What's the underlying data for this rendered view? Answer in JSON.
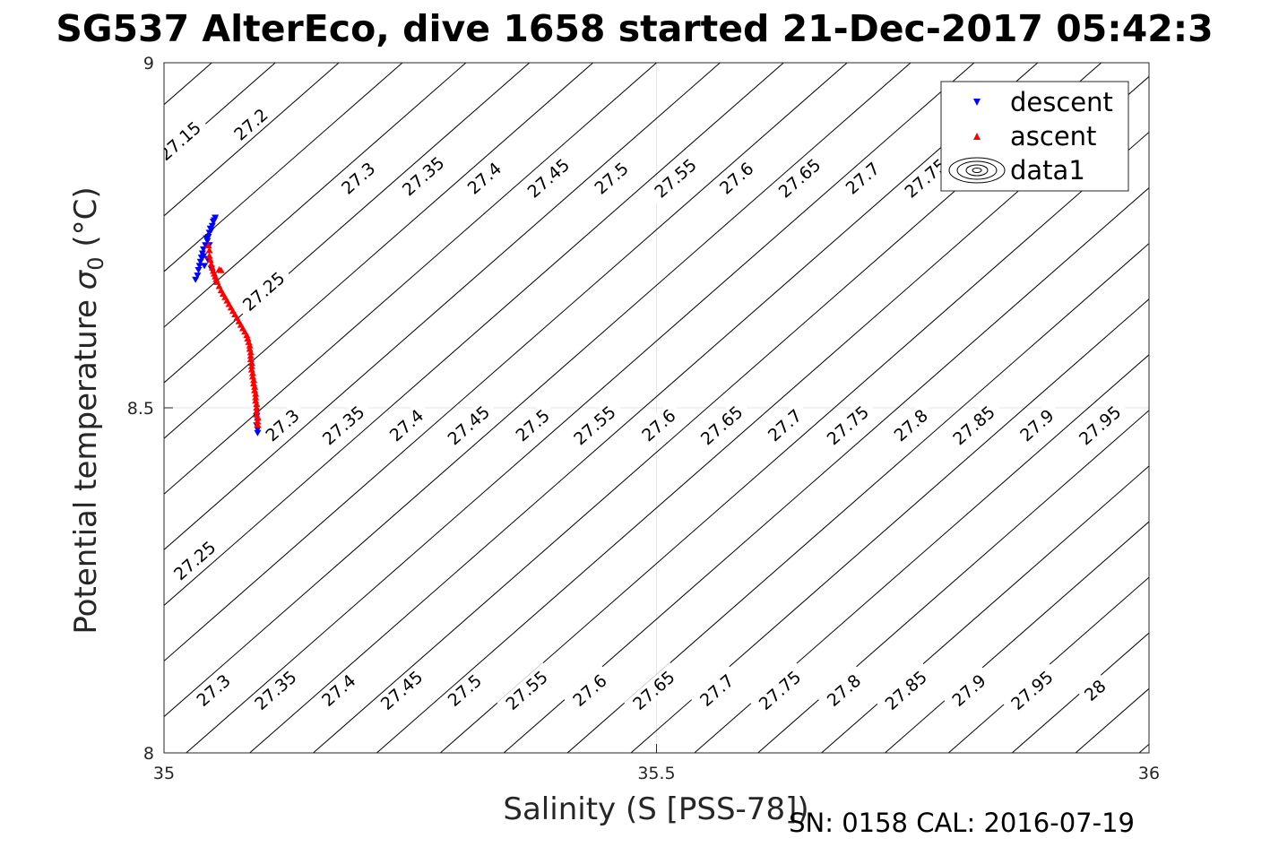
{
  "chart_data": {
    "type": "scatter",
    "title": "SG537 AlterEco, dive 1658 started 21-Dec-2017 05:42:3",
    "xlabel": "Salinity (S [PSS-78])",
    "ylabel_main": "Potential temperature",
    "ylabel_symbol": "σ",
    "ylabel_sub": "0",
    "ylabel_unit": "(°C)",
    "footer": "SN: 0158  CAL: 2016-07-19",
    "xlim": [
      35,
      36
    ],
    "ylim": [
      8,
      9
    ],
    "xticks": [
      35,
      35.5,
      36
    ],
    "xtick_labels": [
      "35",
      "35.5",
      "36"
    ],
    "yticks": [
      8,
      8.5,
      9
    ],
    "ytick_labels": [
      "8",
      "8.5",
      "9"
    ],
    "grid": true,
    "legend_position": "top-right",
    "legend": [
      {
        "label": "descent",
        "marker": "triangle-down",
        "color": "#0000ff"
      },
      {
        "label": "ascent",
        "marker": "triangle-up",
        "color": "#ff0000"
      },
      {
        "label": "data1",
        "marker": "contour",
        "color": "#000000"
      }
    ],
    "contour_labels": [
      {
        "text": "27.15",
        "s": 35.016,
        "t": 8.887
      },
      {
        "text": "27.2",
        "s": 35.088,
        "t": 8.911
      },
      {
        "text": "27.3",
        "s": 35.197,
        "t": 8.833
      },
      {
        "text": "27.35",
        "s": 35.263,
        "t": 8.836
      },
      {
        "text": "27.4",
        "s": 35.325,
        "t": 8.833
      },
      {
        "text": "27.45",
        "s": 35.39,
        "t": 8.833
      },
      {
        "text": "27.5",
        "s": 35.454,
        "t": 8.833
      },
      {
        "text": "27.55",
        "s": 35.519,
        "t": 8.833
      },
      {
        "text": "27.6",
        "s": 35.581,
        "t": 8.833
      },
      {
        "text": "27.65",
        "s": 35.645,
        "t": 8.833
      },
      {
        "text": "27.7",
        "s": 35.709,
        "t": 8.833
      },
      {
        "text": "27.75",
        "s": 35.773,
        "t": 8.833
      },
      {
        "text": "27.25",
        "s": 35.101,
        "t": 8.669
      },
      {
        "text": "27.3",
        "s": 35.12,
        "t": 8.475
      },
      {
        "text": "27.35",
        "s": 35.182,
        "t": 8.475
      },
      {
        "text": "27.4",
        "s": 35.246,
        "t": 8.475
      },
      {
        "text": "27.45",
        "s": 35.309,
        "t": 8.475
      },
      {
        "text": "27.5",
        "s": 35.374,
        "t": 8.475
      },
      {
        "text": "27.55",
        "s": 35.437,
        "t": 8.475
      },
      {
        "text": "27.6",
        "s": 35.502,
        "t": 8.475
      },
      {
        "text": "27.65",
        "s": 35.566,
        "t": 8.475
      },
      {
        "text": "27.7",
        "s": 35.63,
        "t": 8.475
      },
      {
        "text": "27.75",
        "s": 35.694,
        "t": 8.475
      },
      {
        "text": "27.8",
        "s": 35.758,
        "t": 8.475
      },
      {
        "text": "27.85",
        "s": 35.822,
        "t": 8.475
      },
      {
        "text": "27.9",
        "s": 35.886,
        "t": 8.475
      },
      {
        "text": "27.95",
        "s": 35.95,
        "t": 8.475
      },
      {
        "text": "27.25",
        "s": 35.031,
        "t": 8.279
      },
      {
        "text": "27.3",
        "s": 35.05,
        "t": 8.091
      },
      {
        "text": "27.35",
        "s": 35.113,
        "t": 8.091
      },
      {
        "text": "27.4",
        "s": 35.177,
        "t": 8.091
      },
      {
        "text": "27.45",
        "s": 35.241,
        "t": 8.091
      },
      {
        "text": "27.5",
        "s": 35.305,
        "t": 8.091
      },
      {
        "text": "27.55",
        "s": 35.368,
        "t": 8.091
      },
      {
        "text": "27.6",
        "s": 35.432,
        "t": 8.091
      },
      {
        "text": "27.65",
        "s": 35.497,
        "t": 8.091
      },
      {
        "text": "27.7",
        "s": 35.561,
        "t": 8.091
      },
      {
        "text": "27.75",
        "s": 35.625,
        "t": 8.091
      },
      {
        "text": "27.8",
        "s": 35.69,
        "t": 8.091
      },
      {
        "text": "27.85",
        "s": 35.753,
        "t": 8.091
      },
      {
        "text": "27.9",
        "s": 35.817,
        "t": 8.091
      },
      {
        "text": "27.95",
        "s": 35.881,
        "t": 8.091
      },
      {
        "text": "28",
        "s": 35.945,
        "t": 8.091
      }
    ],
    "series": [
      {
        "name": "descent",
        "marker": "triangle-down",
        "color": "#0000ff",
        "points": [
          [
            35.032,
            8.686
          ],
          [
            35.034,
            8.692
          ],
          [
            35.035,
            8.7
          ],
          [
            35.036,
            8.706
          ],
          [
            35.037,
            8.712
          ],
          [
            35.038,
            8.718
          ],
          [
            35.039,
            8.724
          ],
          [
            35.04,
            8.73
          ],
          [
            35.042,
            8.736
          ],
          [
            35.044,
            8.742
          ],
          [
            35.045,
            8.748
          ],
          [
            35.046,
            8.754
          ],
          [
            35.048,
            8.758
          ],
          [
            35.049,
            8.764
          ],
          [
            35.05,
            8.77
          ],
          [
            35.052,
            8.776
          ],
          [
            35.047,
            8.76
          ],
          [
            35.043,
            8.746
          ],
          [
            35.041,
            8.706
          ],
          [
            35.044,
            8.716
          ],
          [
            35.04,
            8.72
          ],
          [
            35.046,
            8.736
          ],
          [
            35.051,
            8.772
          ],
          [
            35.048,
            8.702
          ],
          [
            35.095,
            8.469
          ],
          [
            35.095,
            8.464
          ],
          [
            35.094,
            8.475
          ],
          [
            35.095,
            8.481
          ],
          [
            35.094,
            8.488
          ]
        ]
      },
      {
        "name": "ascent",
        "marker": "triangle-up",
        "color": "#ff0000",
        "points": [
          [
            35.045,
            8.735
          ],
          [
            35.046,
            8.728
          ],
          [
            35.046,
            8.72
          ],
          [
            35.047,
            8.714
          ],
          [
            35.048,
            8.708
          ],
          [
            35.049,
            8.703
          ],
          [
            35.05,
            8.698
          ],
          [
            35.051,
            8.694
          ],
          [
            35.052,
            8.69
          ],
          [
            35.053,
            8.686
          ],
          [
            35.056,
            8.7
          ],
          [
            35.058,
            8.699
          ],
          [
            35.054,
            8.682
          ],
          [
            35.056,
            8.676
          ],
          [
            35.058,
            8.67
          ],
          [
            35.06,
            8.665
          ],
          [
            35.062,
            8.66
          ],
          [
            35.064,
            8.655
          ],
          [
            35.066,
            8.65
          ],
          [
            35.068,
            8.645
          ],
          [
            35.07,
            8.64
          ],
          [
            35.072,
            8.635
          ],
          [
            35.074,
            8.63
          ],
          [
            35.076,
            8.625
          ],
          [
            35.078,
            8.62
          ],
          [
            35.08,
            8.615
          ],
          [
            35.082,
            8.61
          ],
          [
            35.084,
            8.605
          ],
          [
            35.085,
            8.6
          ],
          [
            35.086,
            8.595
          ],
          [
            35.087,
            8.59
          ],
          [
            35.087,
            8.585
          ],
          [
            35.088,
            8.58
          ],
          [
            35.088,
            8.575
          ],
          [
            35.088,
            8.57
          ],
          [
            35.089,
            8.565
          ],
          [
            35.089,
            8.56
          ],
          [
            35.089,
            8.555
          ],
          [
            35.09,
            8.55
          ],
          [
            35.09,
            8.545
          ],
          [
            35.091,
            8.54
          ],
          [
            35.091,
            8.535
          ],
          [
            35.092,
            8.53
          ],
          [
            35.092,
            8.525
          ],
          [
            35.093,
            8.52
          ],
          [
            35.093,
            8.515
          ],
          [
            35.093,
            8.51
          ],
          [
            35.094,
            8.505
          ],
          [
            35.094,
            8.5
          ],
          [
            35.094,
            8.495
          ],
          [
            35.094,
            8.49
          ],
          [
            35.095,
            8.485
          ],
          [
            35.095,
            8.48
          ],
          [
            35.095,
            8.475
          ]
        ]
      }
    ]
  }
}
